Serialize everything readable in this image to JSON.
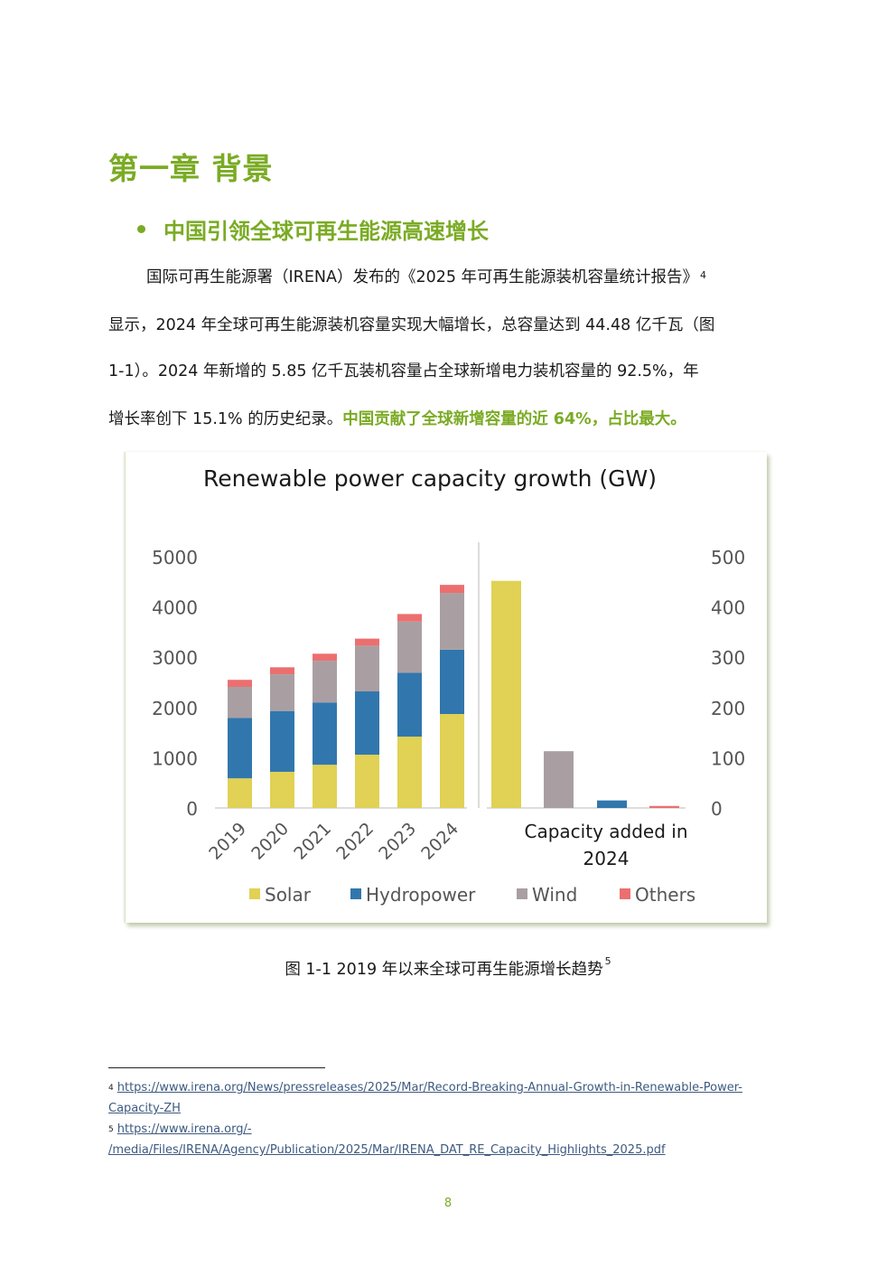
{
  "chapter_title": "第一章 背景",
  "section_title": "中国引领全球可再生能源高速增长",
  "paragraph": {
    "line1": "国际可再生能源署（IRENA）发布的《2025 年可再生能源装机容量统计报告》",
    "line1_fn": "4",
    "line2": "显示，2024 年全球可再生能源装机容量实现大幅增长，总容量达到 44.48 亿千瓦（图",
    "line3": "1-1）。2024 年新增的 5.85 亿千瓦装机容量占全球新增电力装机容量的 92.5%，年",
    "line4_plain": "增长率创下 15.1% 的历史纪录。",
    "line4_highlight": "中国贡献了全球新增容量的近 64%，占比最大。"
  },
  "figure": {
    "caption": "图 1-1 2019 年以来全球可再生能源增长趋势",
    "caption_fn": "5"
  },
  "footnotes": [
    {
      "num": "4",
      "line1": "https://www.irena.org/News/pressreleases/2025/Mar/Record-Breaking-Annual-Growth-in-Renewable-Power-",
      "line2": "Capacity-ZH"
    },
    {
      "num": "5",
      "line1": "https://www.irena.org/-",
      "line2": "/media/Files/IRENA/Agency/Publication/2025/Mar/IRENA_DAT_RE_Capacity_Highlights_2025.pdf"
    }
  ],
  "page_number": "8",
  "colors": {
    "accent": "#7aab24",
    "solar": "#e1d154",
    "hydro": "#3177ad",
    "wind": "#a99fa3",
    "others": "#ec6f70"
  },
  "chart_data": [
    {
      "type": "bar",
      "stacked": true,
      "title": "Renewable power capacity growth (GW)",
      "categories": [
        "2019",
        "2020",
        "2021",
        "2022",
        "2023",
        "2024"
      ],
      "series": [
        {
          "name": "Solar",
          "color": "#e1d154",
          "values": [
            590,
            720,
            860,
            1060,
            1420,
            1870
          ]
        },
        {
          "name": "Hydropower",
          "color": "#3177ad",
          "values": [
            1200,
            1210,
            1240,
            1260,
            1270,
            1280
          ]
        },
        {
          "name": "Wind",
          "color": "#a99fa3",
          "values": [
            620,
            730,
            830,
            910,
            1020,
            1130
          ]
        },
        {
          "name": "Others",
          "color": "#ec6f70",
          "values": [
            140,
            140,
            140,
            140,
            150,
            160
          ]
        }
      ],
      "ylim": [
        0,
        5000
      ],
      "yticks": [
        "5000",
        "4000",
        "3000",
        "2000",
        "1000",
        "0"
      ],
      "legend": "bottom"
    },
    {
      "type": "bar",
      "xlabel": "Capacity added in 2024",
      "categories": [
        "Solar",
        "Wind",
        "Hydropower",
        "Others"
      ],
      "values": [
        452,
        113,
        15,
        4
      ],
      "colors": [
        "#e1d154",
        "#a99fa3",
        "#3177ad",
        "#ec6f70"
      ],
      "ylim": [
        0,
        500
      ],
      "yticks": [
        "500",
        "400",
        "300",
        "200",
        "100",
        "0"
      ]
    }
  ]
}
